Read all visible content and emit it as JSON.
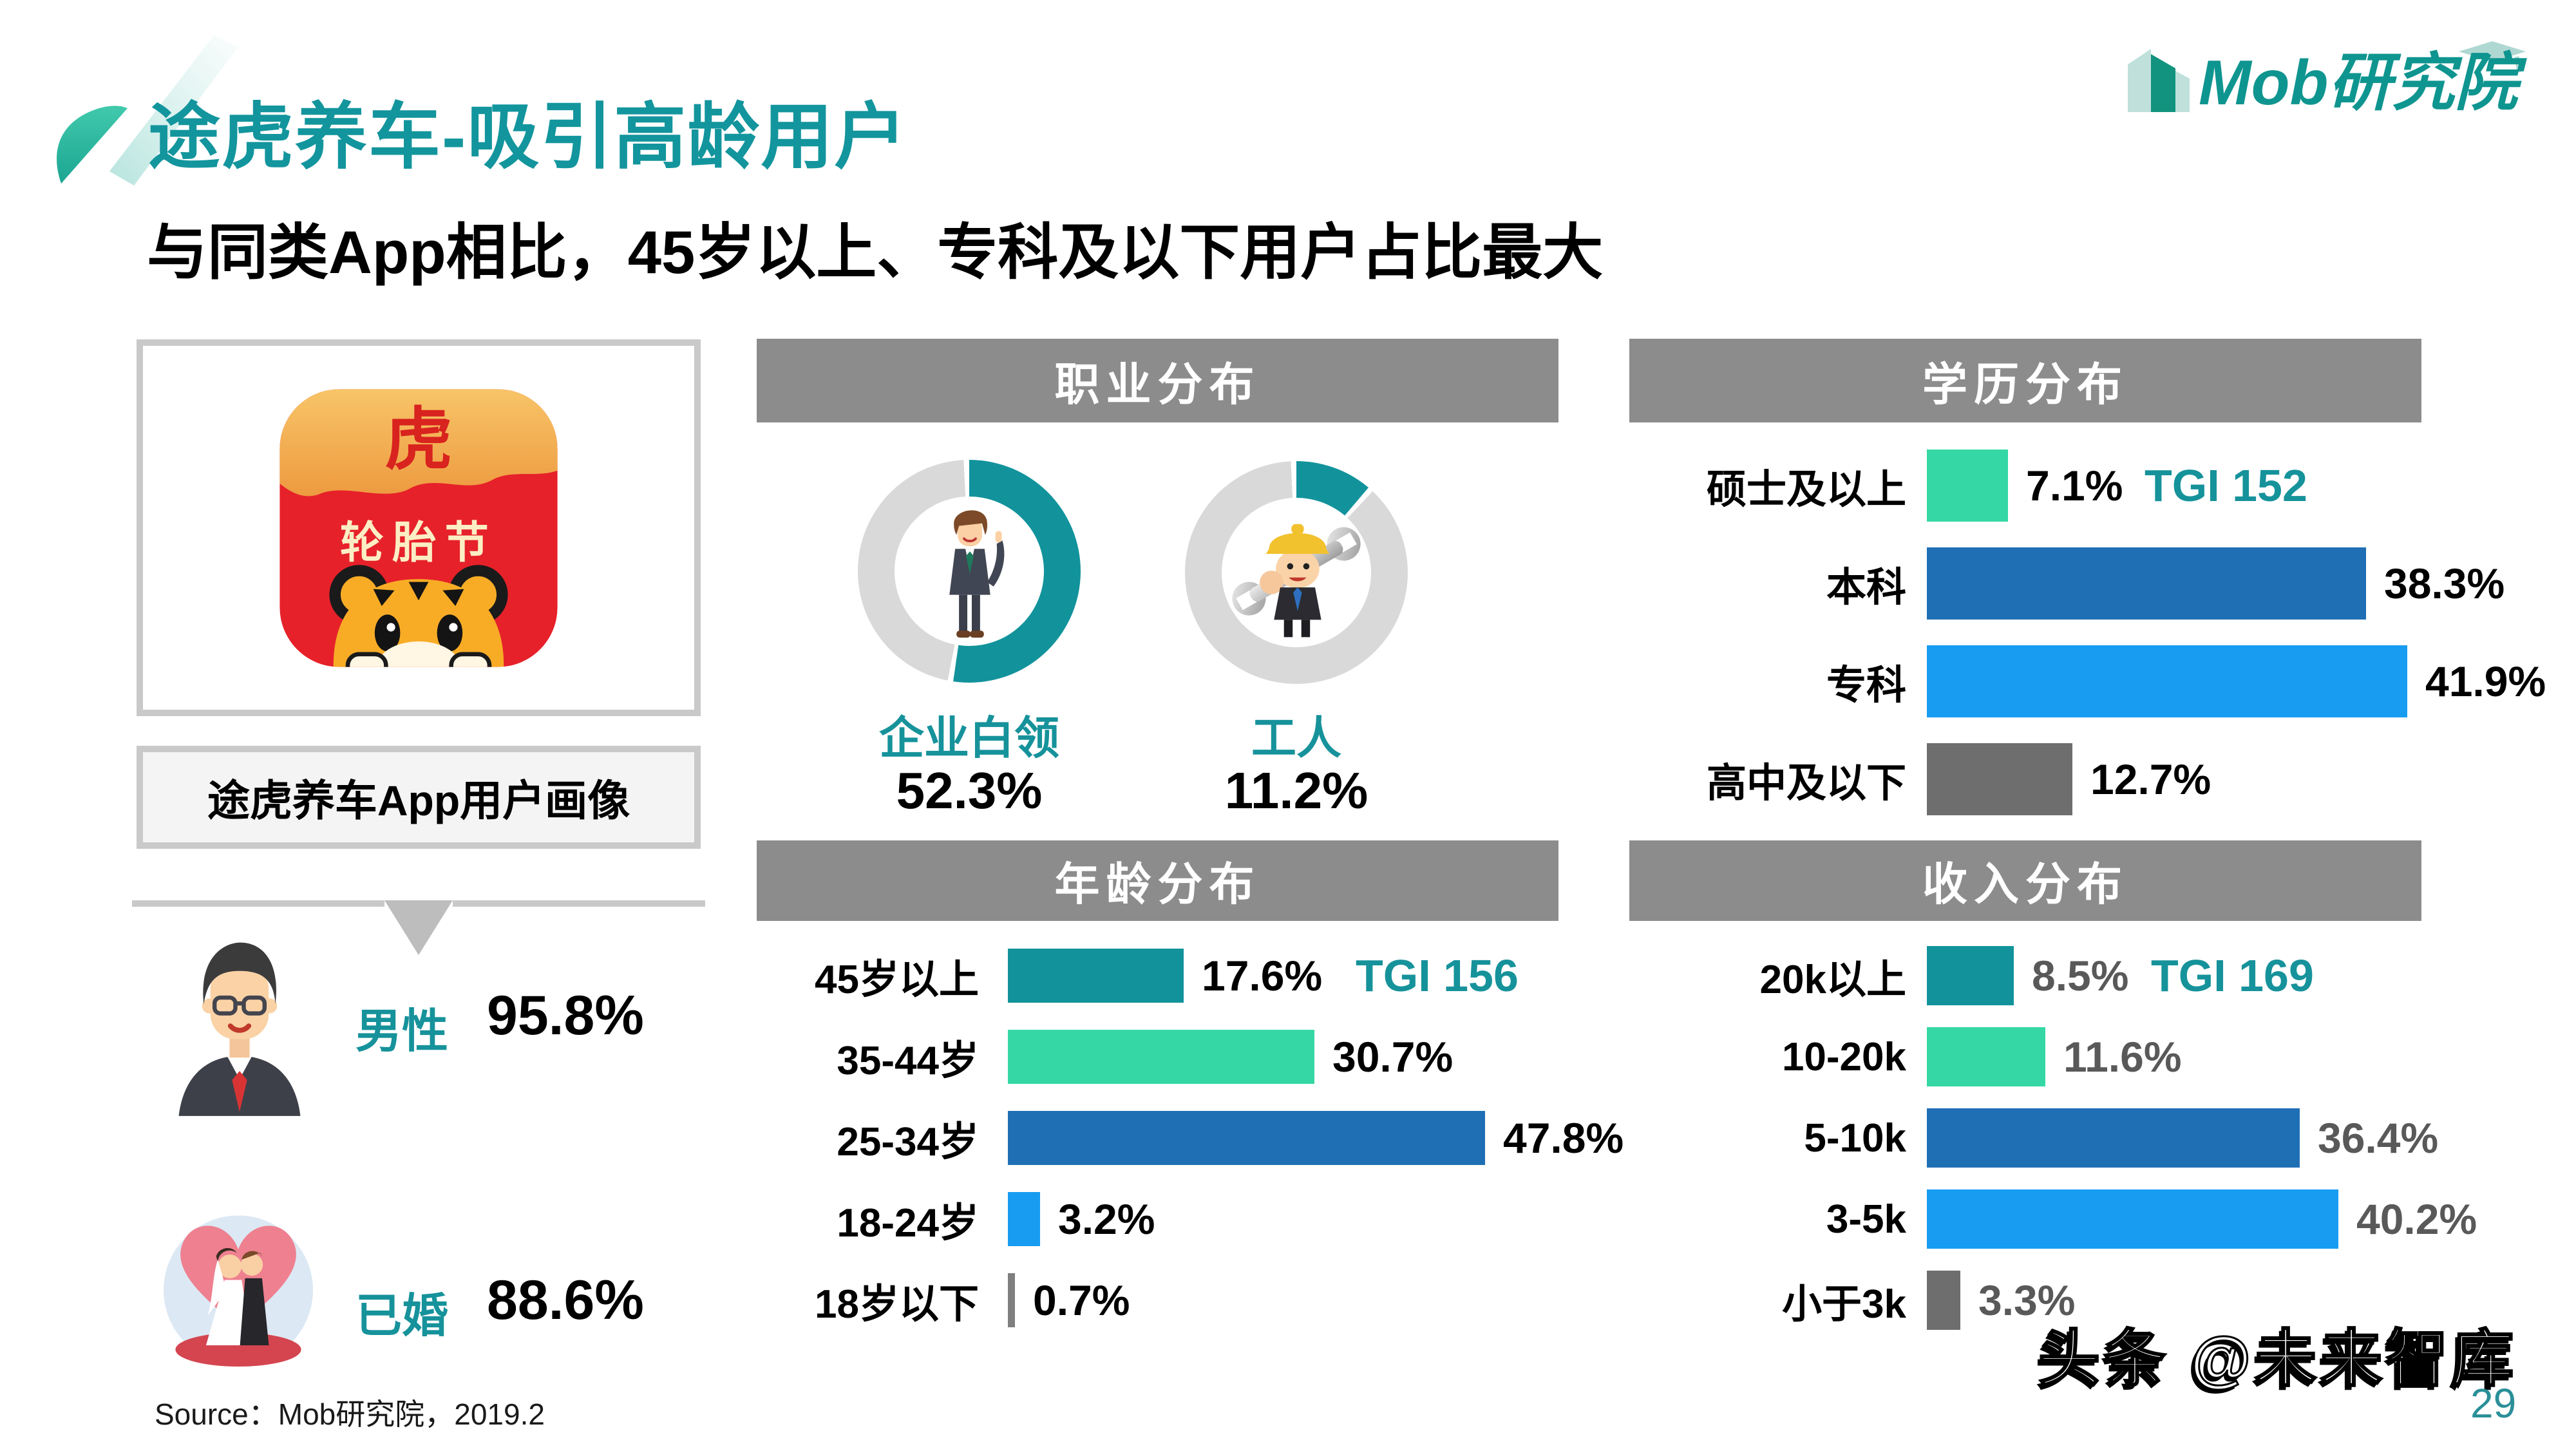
{
  "page": {
    "title": "途虎养车-吸引高龄用户",
    "subtitle": "与同类App相比，45岁以上、专科及以下用户占比最大",
    "logo_text": "Mob研究院",
    "watermark": "头条 @未来智库",
    "page_number": "29",
    "source": "Source：Mob研究院，2019.2"
  },
  "left_panel": {
    "app_icon": {
      "top_char": "虎",
      "banner_text": "轮胎节"
    },
    "caption": "途虎养车App用户画像",
    "stats": [
      {
        "icon": "businessman",
        "label": "男性",
        "value_label": "95.8%"
      },
      {
        "icon": "married-couple",
        "label": "已婚",
        "value_label": "88.6%"
      }
    ]
  },
  "chart_data": [
    {
      "type": "donut",
      "title": "职业分布",
      "items": [
        {
          "label": "企业白领",
          "value": 52.3,
          "value_label": "52.3%",
          "icon": "white-collar-worker"
        },
        {
          "label": "工人",
          "value": 11.2,
          "value_label": "11.2%",
          "icon": "manual-worker"
        }
      ],
      "ring_color": "#12939C",
      "ring_bg_color": "#D9D9D9",
      "legend_position": "below"
    },
    {
      "type": "bar",
      "title": "年龄分布",
      "orientation": "horizontal",
      "categories": [
        "45岁以上",
        "35-44岁",
        "25-34岁",
        "18-24岁",
        "18岁以下"
      ],
      "values": [
        17.6,
        30.7,
        47.8,
        3.2,
        0.7
      ],
      "value_labels": [
        "17.6%",
        "30.7%",
        "47.8%",
        "3.2%",
        "0.7%"
      ],
      "bar_colors": [
        "#12939C",
        "#35D8A5",
        "#1F6FB5",
        "#189CF1",
        "#7F7F7F"
      ],
      "value_label_color": "#000000",
      "annotation": {
        "text": "TGI 156",
        "row": 0,
        "color": "#16929B"
      },
      "xlim": [
        0,
        50
      ],
      "grid": false
    },
    {
      "type": "bar",
      "title": "学历分布",
      "orientation": "horizontal",
      "categories": [
        "硕士及以上",
        "本科",
        "专科",
        "高中及以下"
      ],
      "values": [
        7.1,
        38.3,
        41.9,
        12.7
      ],
      "value_labels": [
        "7.1%",
        "38.3%",
        "41.9%",
        "12.7%"
      ],
      "bar_colors": [
        "#35D8A5",
        "#1F6FB5",
        "#189CF1",
        "#6E6E6E"
      ],
      "value_label_color": "#000000",
      "annotation": {
        "text": "TGI 152",
        "row": 0,
        "color": "#16929B"
      },
      "xlim": [
        0,
        45
      ],
      "grid": false
    },
    {
      "type": "bar",
      "title": "收入分布",
      "orientation": "horizontal",
      "categories": [
        "20k以上",
        "10-20k",
        "5-10k",
        "3-5k",
        "小于3k"
      ],
      "values": [
        8.5,
        11.6,
        36.4,
        40.2,
        3.3
      ],
      "value_labels": [
        "8.5%",
        "11.6%",
        "36.4%",
        "40.2%",
        "3.3%"
      ],
      "bar_colors": [
        "#12939C",
        "#35D8A5",
        "#1F6FB5",
        "#189CF1",
        "#6E6E6E"
      ],
      "value_label_color": "#595959",
      "annotation": {
        "text": "TGI 169",
        "row": 0,
        "color": "#16929B"
      },
      "xlim": [
        0,
        45
      ],
      "grid": false
    }
  ],
  "colors": {
    "accent_teal": "#13959D",
    "teal_text": "#16929B",
    "header_bg": "#8C8C8C",
    "border_gray": "#C9C9C9",
    "dark_blue": "#1F6FB5",
    "bright_blue": "#189CF1",
    "mint_green": "#35D8A5",
    "bar_gray": "#6E6E6E"
  }
}
